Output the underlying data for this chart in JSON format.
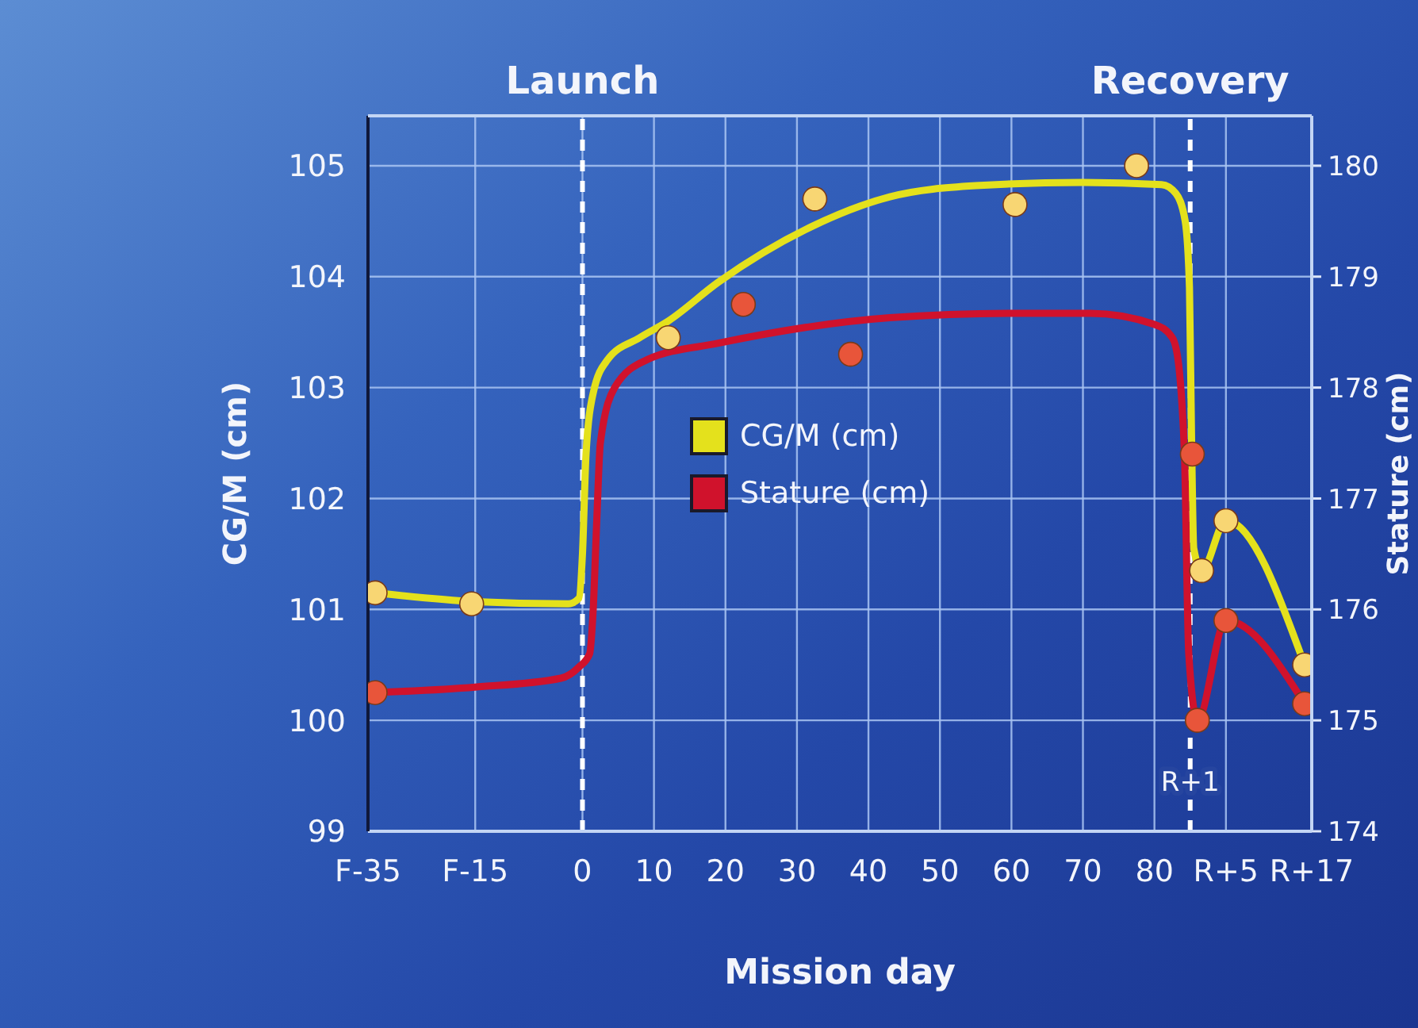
{
  "chart_data": {
    "type": "line",
    "xlabel": "Mission day",
    "ylabel": "CG/M (cm)",
    "y2label": "Stature (cm)",
    "xlim": [
      -30,
      102
    ],
    "xticks": [
      {
        "value": -30,
        "label": "F-35"
      },
      {
        "value": -15,
        "label": "F-15"
      },
      0,
      10,
      20,
      30,
      40,
      50,
      60,
      70,
      80,
      {
        "value": 90,
        "label": "R+5"
      },
      {
        "value": 102,
        "label": "R+17"
      }
    ],
    "ylim": [
      99,
      105.45
    ],
    "yticks": [
      99,
      100,
      101,
      102,
      103,
      104,
      105
    ],
    "y2lim": [
      174,
      180.45
    ],
    "y2ticks": [
      174,
      175,
      176,
      177,
      178,
      179,
      180
    ],
    "grid": true,
    "legend": "center",
    "series": [
      {
        "name": "CG/M (cm)",
        "type": "line",
        "color": "#e4e11c",
        "x": [
          -29,
          -15,
          -2,
          -0.5,
          0,
          0.5,
          1.5,
          3.5,
          8,
          12,
          19,
          32,
          43,
          55,
          70,
          81,
          83,
          84.3,
          84.9,
          85.2,
          85.5,
          86.6,
          90,
          101
        ],
        "values": [
          101.15,
          101.07,
          101.05,
          101.1,
          101.5,
          102.4,
          102.95,
          103.25,
          103.45,
          103.6,
          103.95,
          104.45,
          104.72,
          104.82,
          104.85,
          104.83,
          104.75,
          104.5,
          103.9,
          102.5,
          101.55,
          101.35,
          101.8,
          100.5
        ]
      },
      {
        "type": "scatter",
        "marker": "circle",
        "color": "#f8d673",
        "x": [
          -29,
          -15.5,
          12,
          32.5,
          60.5,
          77.5,
          86.6,
          90,
          101
        ],
        "values": [
          101.15,
          101.05,
          103.45,
          104.7,
          104.65,
          105.0,
          101.35,
          101.8,
          100.5
        ]
      },
      {
        "name": "Stature (cm)",
        "type": "line",
        "axis": "y2",
        "color": "#d0122c",
        "x": [
          -29,
          -15,
          -3,
          -0.5,
          1,
          1.5,
          2,
          2.5,
          4.5,
          9,
          19,
          43,
          60,
          71,
          80,
          82.5,
          83.4,
          83.8,
          84.2,
          84.8,
          86,
          90,
          101
        ],
        "values": [
          175.25,
          175.3,
          175.38,
          175.48,
          175.6,
          176,
          176.8,
          177.5,
          178,
          178.25,
          178.4,
          178.63,
          178.67,
          178.67,
          178.57,
          178.45,
          178.2,
          177.9,
          177.4,
          175.6,
          175.0,
          175.9,
          175.15
        ]
      },
      {
        "type": "scatter",
        "marker": "circle",
        "axis": "y2",
        "color": "#e8553a",
        "x": [
          -29,
          22.5,
          37.5,
          85.3,
          86,
          90,
          101
        ],
        "values": [
          175.25,
          178.75,
          178.3,
          177.4,
          175.0,
          175.9,
          175.15
        ]
      }
    ],
    "ref_lines": [
      {
        "axis": "x",
        "value": 0,
        "label": "Launch",
        "color": "#ffffff",
        "line_style": "dashed"
      },
      {
        "axis": "x",
        "value": 85,
        "label": "Recovery",
        "color": "#ffffff",
        "line_style": "dashed"
      }
    ],
    "annotations": [
      {
        "text": "R+1",
        "x": 85,
        "y": 99.45
      }
    ]
  }
}
